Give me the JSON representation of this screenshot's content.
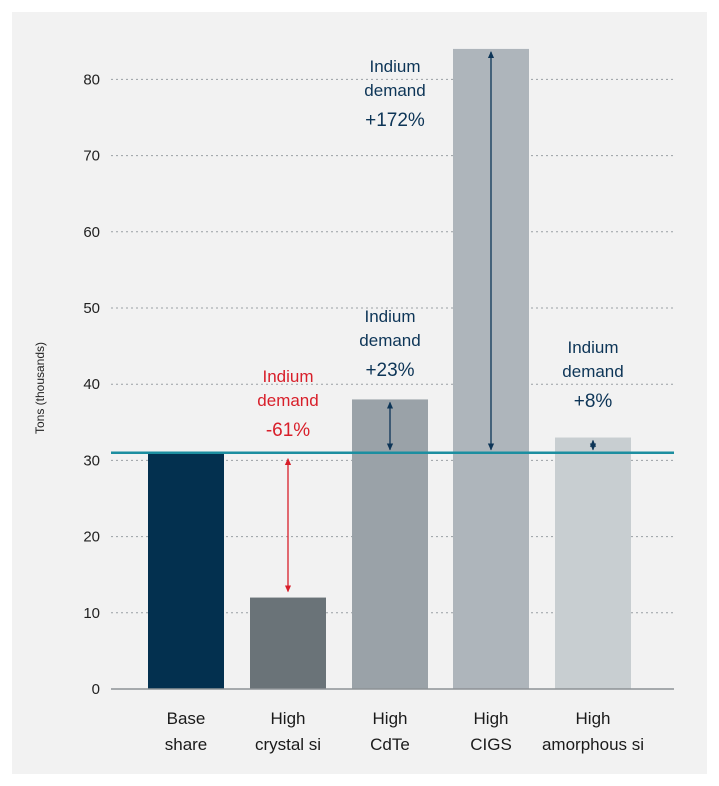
{
  "chart_data": {
    "type": "bar",
    "ylabel": "Tons (thousands)",
    "ylim": [
      0,
      85
    ],
    "yticks": [
      0,
      10,
      20,
      30,
      40,
      50,
      60,
      70,
      80
    ],
    "grid": "horizontal dotted",
    "baseline_value": 31,
    "categories": [
      [
        "Base",
        "share"
      ],
      [
        "High",
        "crystal si"
      ],
      [
        "High",
        "CdTe"
      ],
      [
        "High",
        "CIGS"
      ],
      [
        "High",
        "amorphous si"
      ]
    ],
    "values": [
      31,
      12,
      38,
      84,
      33
    ],
    "bar_colors": [
      "#03304f",
      "#6a7378",
      "#9aa2a8",
      "#aeb5bb",
      "#c8ced1"
    ],
    "annotations": [
      null,
      {
        "lines": [
          "Indium",
          "demand",
          "-61%"
        ],
        "color": "#d81f2a"
      },
      {
        "lines": [
          "Indium",
          "demand",
          "+23%"
        ],
        "color": "#0d3557"
      },
      {
        "lines": [
          "Indium",
          "demand",
          "+172%"
        ],
        "color": "#0d3557"
      },
      {
        "lines": [
          "Indium",
          "demand",
          "+8%"
        ],
        "color": "#0d3557"
      }
    ],
    "reference_line_color": "#1c8ea0"
  }
}
